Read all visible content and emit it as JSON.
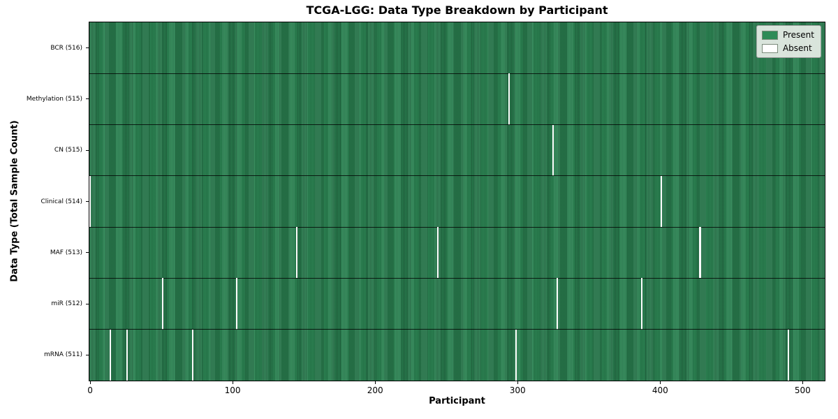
{
  "figure": {
    "background_color": "#ffffff"
  },
  "chart_data": {
    "type": "heatmap",
    "title": "TCGA-LGG: Data Type Breakdown by Participant",
    "xlabel": "Participant",
    "ylabel": "Data Type (Total Sample Count)",
    "n_participants": 516,
    "x_range": [
      -0.5,
      515.5
    ],
    "x_ticks": [
      0,
      100,
      200,
      300,
      400,
      500
    ],
    "grid": false,
    "legend_position": "upper right",
    "legend": [
      {
        "label": "Present",
        "color": "#2e8b57"
      },
      {
        "label": "Absent",
        "color": "#ffffff"
      }
    ],
    "colors": {
      "present": "#2e8b57",
      "present_edge": "#1d5a39",
      "absent": "#fcfcfc",
      "row_separator": "#000000"
    },
    "rows": [
      {
        "label": "BCR (516)",
        "data_type": "BCR",
        "present_count": 516,
        "absent_participants": []
      },
      {
        "label": "Methylation (515)",
        "data_type": "Methylation",
        "present_count": 515,
        "absent_participants": [
          294
        ]
      },
      {
        "label": "CN (515)",
        "data_type": "CN",
        "present_count": 515,
        "absent_participants": [
          325
        ]
      },
      {
        "label": "Clinical (514)",
        "data_type": "Clinical",
        "present_count": 514,
        "absent_participants": [
          0,
          401
        ]
      },
      {
        "label": "MAF (513)",
        "data_type": "MAF",
        "present_count": 513,
        "absent_participants": [
          145,
          244,
          428
        ]
      },
      {
        "label": "miR (512)",
        "data_type": "miR",
        "present_count": 512,
        "absent_participants": [
          51,
          103,
          328,
          387
        ]
      },
      {
        "label": "mRNA (511)",
        "data_type": "mRNA",
        "present_count": 511,
        "absent_participants": [
          14,
          26,
          72,
          299,
          490
        ]
      }
    ]
  }
}
